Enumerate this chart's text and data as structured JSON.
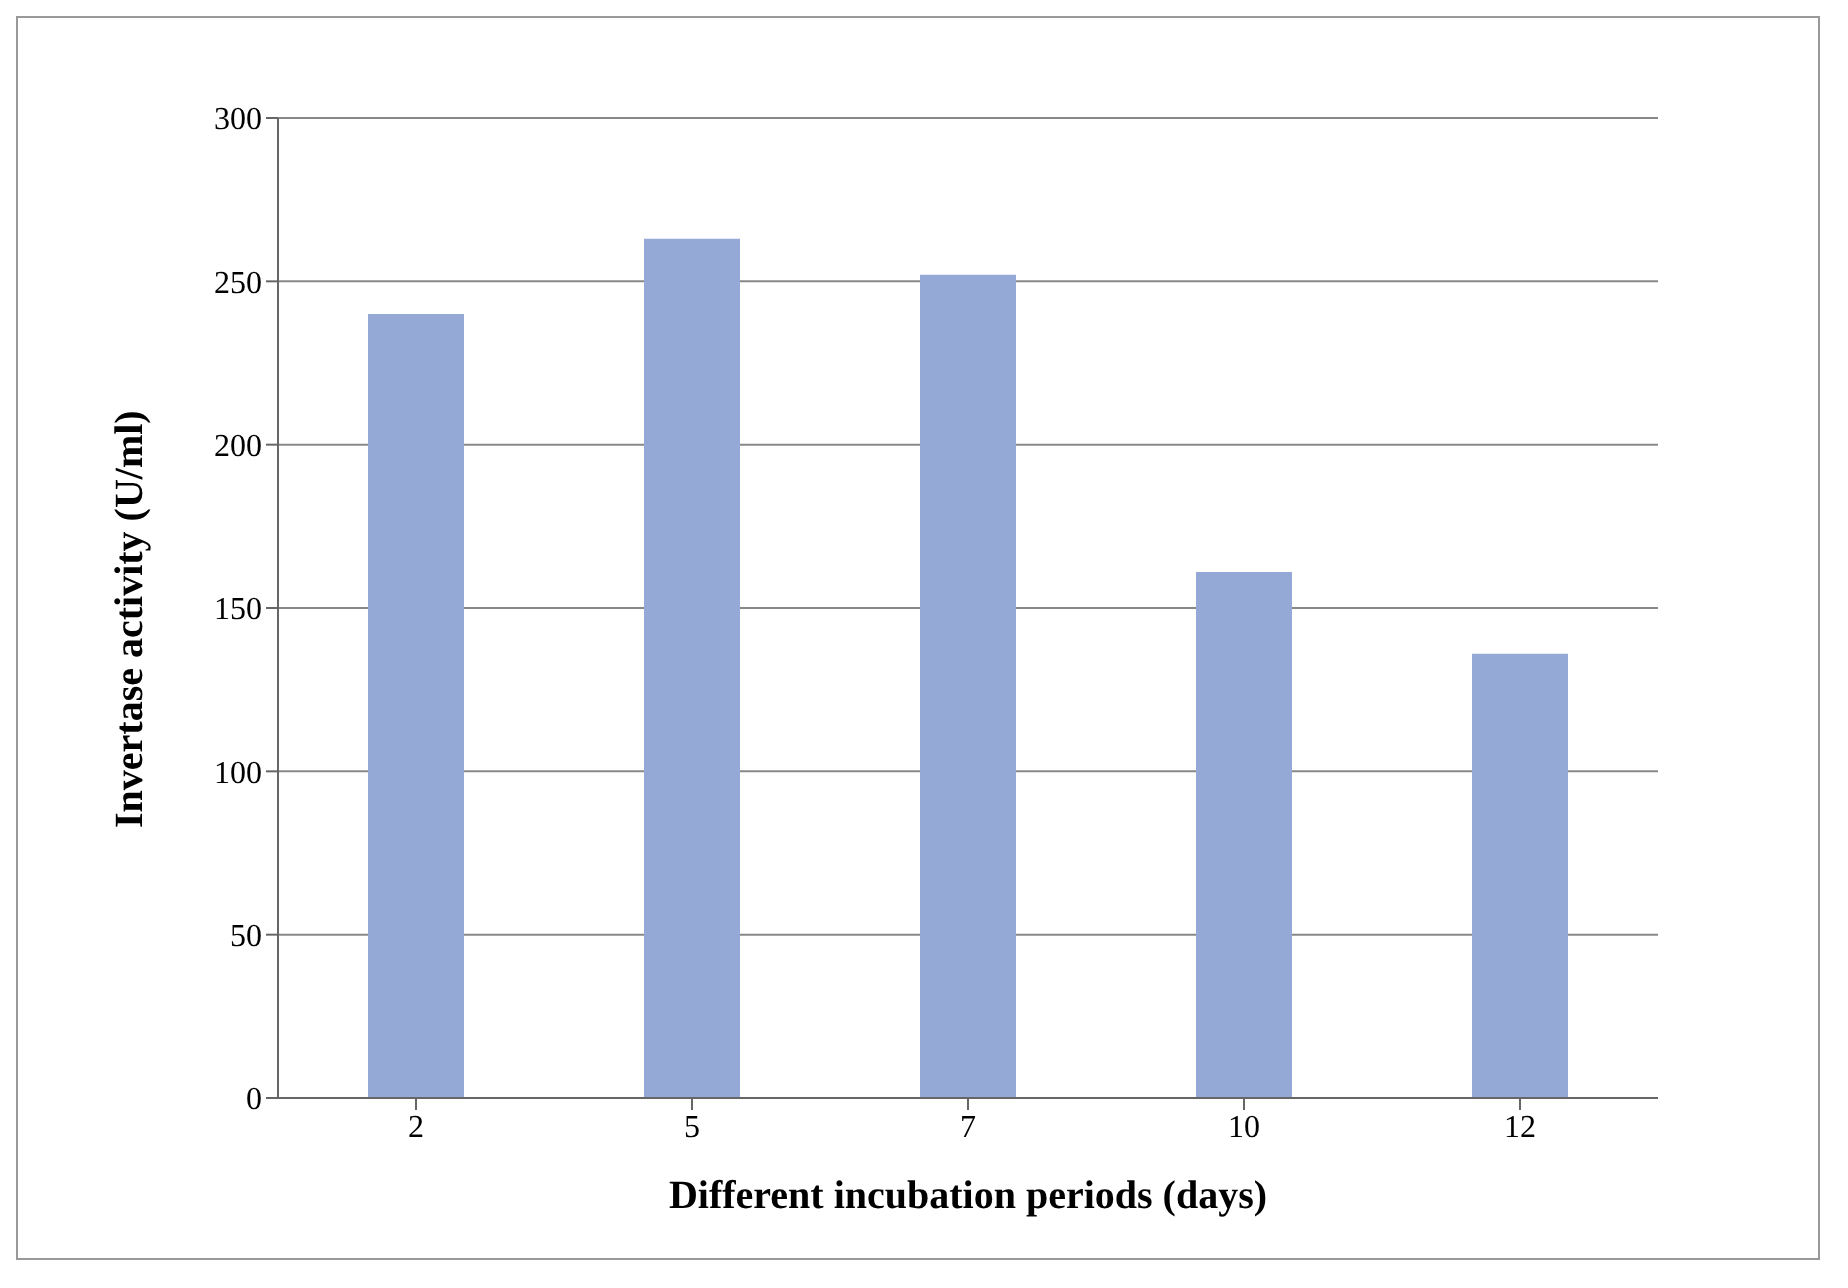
{
  "chart_data": {
    "type": "bar",
    "xlabel": "Different incubation periods (days)",
    "ylabel": "Invertase activity (U/ml)",
    "categories": [
      "2",
      "5",
      "7",
      "10",
      "12"
    ],
    "values": [
      240,
      263,
      252,
      161,
      136
    ],
    "color": "#95a9d6",
    "ylim": [
      0,
      300
    ],
    "yticks": [
      0,
      50,
      100,
      150,
      200,
      250,
      300
    ],
    "grid": "y"
  }
}
